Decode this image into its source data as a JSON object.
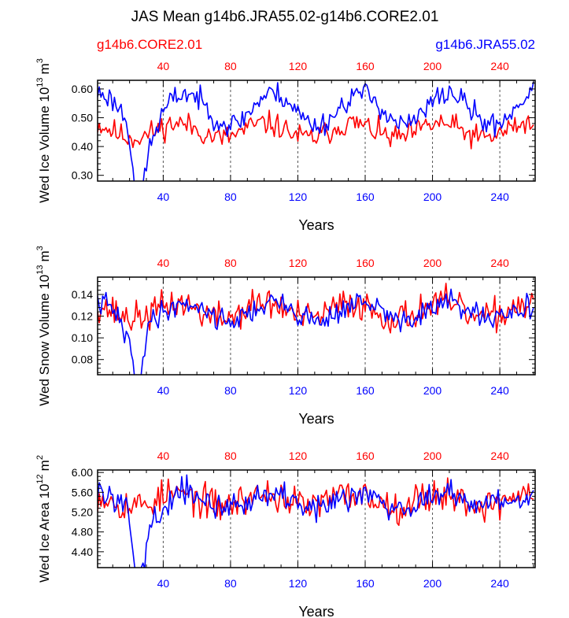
{
  "title": "JAS Mean g14b6.JRA55.02-g14b6.CORE2.01",
  "legend": {
    "left": {
      "label": "g14b6.CORE2.01",
      "color": "#ff0000"
    },
    "right": {
      "label": "g14b6.JRA55.02",
      "color": "#0000ff"
    }
  },
  "chart_data": [
    {
      "type": "line",
      "ylabel_main": "Wed Ice Volume 10",
      "ylabel_exp": "13",
      "ylabel_unit_base": "m",
      "ylabel_unit_exp": "3",
      "xlabel": "Years",
      "xlim": [
        1,
        261
      ],
      "ylim": [
        0.28,
        0.63
      ],
      "yticks": [
        0.3,
        0.4,
        0.5,
        0.6
      ],
      "ytick_labels": [
        "0.30",
        "0.40",
        "0.50",
        "0.60"
      ],
      "xticks": [
        40,
        80,
        120,
        160,
        200,
        240
      ],
      "xtick_labels": [
        "40",
        "80",
        "120",
        "160",
        "200",
        "240"
      ],
      "series": [
        {
          "name": "g14b6.CORE2.01",
          "color": "#ff0000",
          "model": {
            "mean": 0.455,
            "cycle_amp": 0.025,
            "period": 52,
            "phase": 2.0,
            "noise": 0.032,
            "seed": 11,
            "dips": []
          }
        },
        {
          "name": "g14b6.JRA55.02",
          "color": "#0000ff",
          "model": {
            "mean": 0.53,
            "cycle_amp": 0.055,
            "period": 52,
            "phase": 1.4,
            "noise": 0.03,
            "seed": 23,
            "dips": [
              {
                "center": 25,
                "width": 3,
                "depth": 0.22
              },
              {
                "center": 30,
                "width": 5,
                "depth": 0.08
              }
            ]
          }
        }
      ]
    },
    {
      "type": "line",
      "ylabel_main": "Wed Snow Volume 10",
      "ylabel_exp": "13",
      "ylabel_unit_base": "m",
      "ylabel_unit_exp": "3",
      "xlabel": "Years",
      "xlim": [
        1,
        261
      ],
      "ylim": [
        0.066,
        0.156
      ],
      "yticks": [
        0.08,
        0.1,
        0.12,
        0.14
      ],
      "ytick_labels": [
        "0.08",
        "0.10",
        "0.12",
        "0.14"
      ],
      "xticks": [
        40,
        80,
        120,
        160,
        200,
        240
      ],
      "xtick_labels": [
        "40",
        "80",
        "120",
        "160",
        "200",
        "240"
      ],
      "series": [
        {
          "name": "g14b6.CORE2.01",
          "color": "#ff0000",
          "model": {
            "mean": 0.125,
            "cycle_amp": 0.007,
            "period": 52,
            "phase": 2.0,
            "noise": 0.011,
            "seed": 37,
            "dips": []
          }
        },
        {
          "name": "g14b6.JRA55.02",
          "color": "#0000ff",
          "model": {
            "mean": 0.124,
            "cycle_amp": 0.008,
            "period": 52,
            "phase": 1.4,
            "noise": 0.008,
            "seed": 41,
            "dips": [
              {
                "center": 25,
                "width": 3,
                "depth": 0.055
              },
              {
                "center": 18,
                "width": 4,
                "depth": 0.015
              }
            ]
          }
        }
      ]
    },
    {
      "type": "line",
      "ylabel_main": "Wed Ice Area 10",
      "ylabel_exp": "12",
      "ylabel_unit_base": "m",
      "ylabel_unit_exp": "2",
      "xlabel": "Years",
      "xlim": [
        1,
        261
      ],
      "ylim": [
        4.08,
        6.05
      ],
      "yticks": [
        4.4,
        4.8,
        5.2,
        5.6,
        6.0
      ],
      "ytick_labels": [
        "4.40",
        "4.80",
        "5.20",
        "5.60",
        "6.00"
      ],
      "xticks": [
        40,
        80,
        120,
        160,
        200,
        240
      ],
      "xtick_labels": [
        "40",
        "80",
        "120",
        "160",
        "200",
        "240"
      ],
      "series": [
        {
          "name": "g14b6.CORE2.01",
          "color": "#ff0000",
          "model": {
            "mean": 5.45,
            "cycle_amp": 0.12,
            "period": 52,
            "phase": 2.0,
            "noise": 0.25,
            "seed": 53,
            "dips": []
          }
        },
        {
          "name": "g14b6.JRA55.02",
          "color": "#0000ff",
          "model": {
            "mean": 5.45,
            "cycle_amp": 0.13,
            "period": 52,
            "phase": 1.4,
            "noise": 0.2,
            "seed": 59,
            "dips": [
              {
                "center": 25,
                "width": 3,
                "depth": 1.25
              },
              {
                "center": 31,
                "width": 6,
                "depth": 0.45
              }
            ]
          }
        }
      ]
    }
  ]
}
